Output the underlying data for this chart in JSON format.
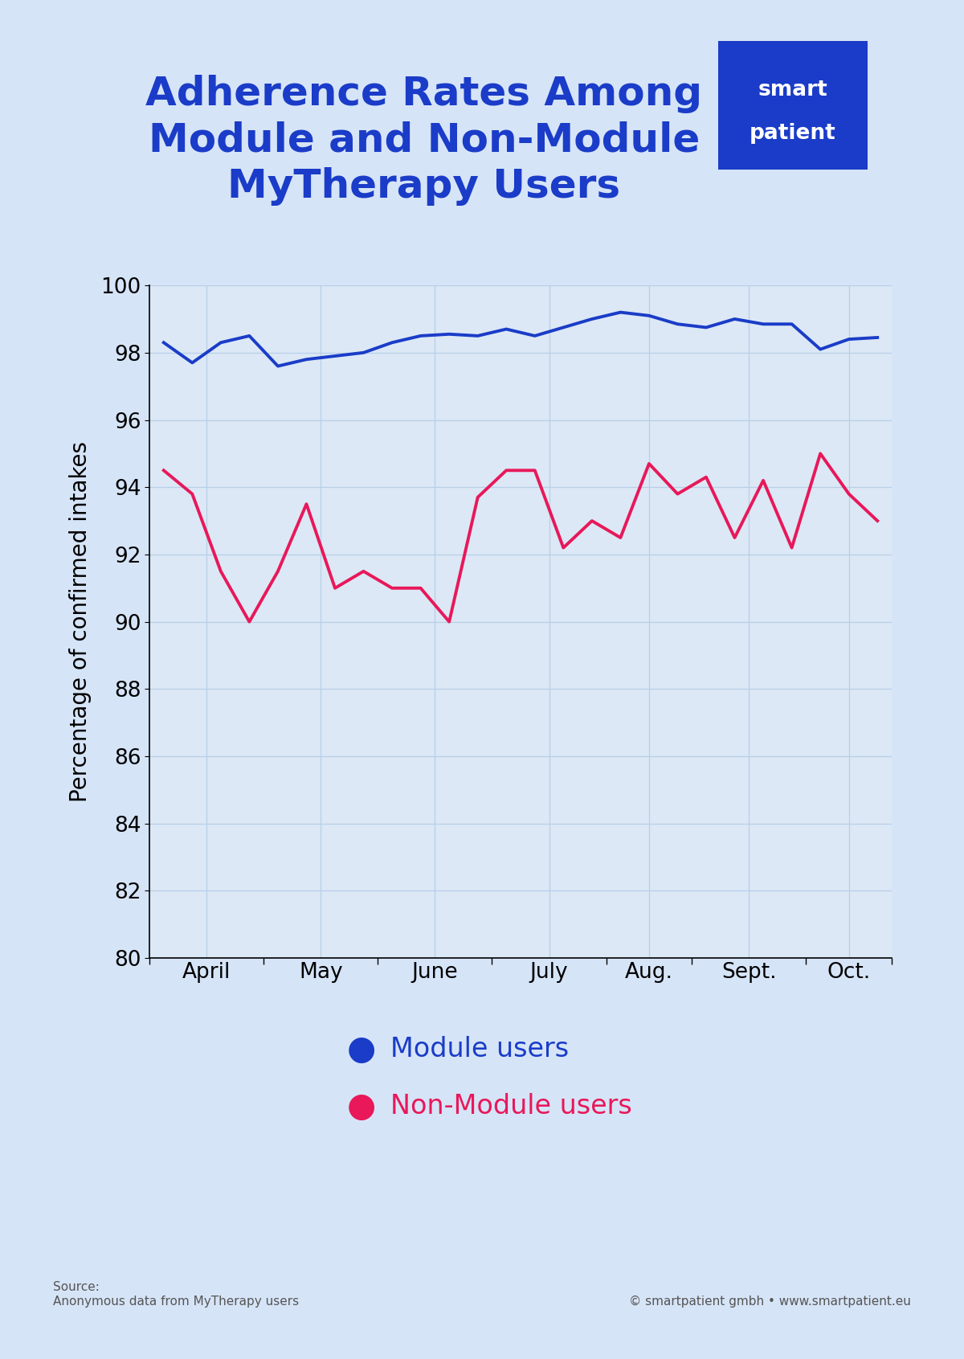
{
  "title_line1": "Adherence Rates Among",
  "title_line2": "Module and Non-Module",
  "title_line3": "MyTherapy Users",
  "title_color": "#1a3cc8",
  "background_color": "#d6e4f7",
  "plot_bg_color": "#dce8f5",
  "xlabel_labels": [
    "April",
    "May",
    "June",
    "July",
    "Aug.",
    "Sept.",
    "Oct."
  ],
  "ylabel": "Percentage of confirmed intakes",
  "ylim": [
    80,
    100
  ],
  "yticks": [
    80,
    82,
    84,
    86,
    88,
    90,
    92,
    94,
    96,
    98,
    100
  ],
  "module_color": "#1a3cc8",
  "non_module_color": "#e8185a",
  "module_label": "Module users",
  "non_module_label": "Non-Module users",
  "logo_color": "#1a3cc8",
  "logo_text_line1": "smart",
  "logo_text_line2": "patient",
  "source_text": "Source:\nAnonymous data from MyTherapy users",
  "copyright_text": "© smartpatient gmbh • www.smartpatient.eu",
  "module_x": [
    0,
    1,
    2,
    3,
    4,
    5,
    6,
    7,
    8,
    9,
    10,
    11,
    12,
    13,
    14,
    15,
    16,
    17,
    18,
    19,
    20,
    21,
    22,
    23,
    24,
    25
  ],
  "module_y": [
    98.3,
    97.7,
    98.3,
    98.5,
    97.6,
    97.8,
    97.9,
    98.0,
    98.3,
    98.5,
    98.55,
    98.5,
    98.7,
    98.5,
    98.75,
    99.0,
    99.2,
    99.1,
    98.85,
    98.75,
    99.0,
    98.85,
    98.85,
    98.1,
    98.4,
    98.45
  ],
  "non_module_x": [
    0,
    1,
    2,
    3,
    4,
    5,
    6,
    7,
    8,
    9,
    10,
    11,
    12,
    13,
    14,
    15,
    16,
    17,
    18,
    19,
    20,
    21,
    22,
    23,
    24,
    25
  ],
  "non_module_y": [
    94.5,
    93.8,
    91.5,
    90.0,
    91.5,
    93.5,
    91.0,
    91.5,
    91.0,
    91.0,
    90.0,
    93.7,
    94.5,
    94.5,
    92.2,
    93.0,
    92.5,
    94.7,
    93.8,
    94.3,
    92.5,
    94.2,
    92.2,
    95.0,
    93.8,
    93.0
  ],
  "line_width": 2.8,
  "grid_color": "#b8cfe8",
  "tick_label_fontsize": 19,
  "ylabel_fontsize": 20,
  "legend_fontsize": 24,
  "title_fontsize": 36
}
